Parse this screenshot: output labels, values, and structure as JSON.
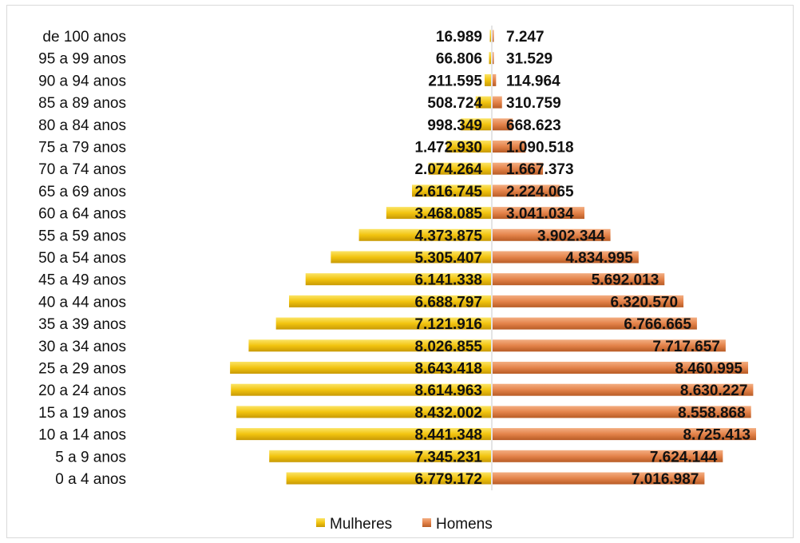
{
  "chart_data": {
    "type": "bar",
    "orientation": "horizontal-population-pyramid",
    "categories": [
      "de 100 anos",
      "95 a 99 anos",
      "90 a 94 anos",
      "85 a 89 anos",
      "80 a 84 anos",
      "75 a 79 anos",
      "70 a 74 anos",
      "65 a 69 anos",
      "60 a 64 anos",
      "55 a 59 anos",
      "50 a 54 anos",
      "45 a 49 anos",
      "40 a 44 anos",
      "35 a 39 anos",
      "30 a 34 anos",
      "25 a 29 anos",
      "20 a 24 anos",
      "15 a 19 anos",
      "10 a 14 anos",
      "5 a 9 anos",
      "0 a 4 anos"
    ],
    "series": [
      {
        "name": "Mulheres",
        "color": "#f2c40f",
        "values": [
          16989,
          66806,
          211595,
          508724,
          998349,
          1472930,
          2074264,
          2616745,
          3468085,
          4373875,
          5305407,
          6141338,
          6688797,
          7121916,
          8026855,
          8643418,
          8614963,
          8432002,
          8441348,
          7345231,
          6779172
        ],
        "labels": [
          "16.989",
          "66.806",
          "211.595",
          "508.724",
          "998.349",
          "1.472.930",
          "2.074.264",
          "2.616.745",
          "3.468.085",
          "4.373.875",
          "5.305.407",
          "6.141.338",
          "6.688.797",
          "7.121.916",
          "8.026.855",
          "8.643.418",
          "8.614.963",
          "8.432.002",
          "8.441.348",
          "7.345.231",
          "6.779.172"
        ]
      },
      {
        "name": "Homens",
        "color": "#e4834a",
        "values": [
          7247,
          31529,
          114964,
          310759,
          668623,
          1090518,
          1667373,
          2224065,
          3041034,
          3902344,
          4834995,
          5692013,
          6320570,
          6766665,
          7717657,
          8460995,
          8630227,
          8558868,
          8725413,
          7624144,
          7016987
        ],
        "labels": [
          "7.247",
          "31.529",
          "114.964",
          "310.759",
          "668.623",
          "1.090.518",
          "1.667.373",
          "2.224.065",
          "3.041.034",
          "3.902.344",
          "4.834.995",
          "5.692.013",
          "6.320.570",
          "6.766.665",
          "7.717.657",
          "8.460.995",
          "8.630.227",
          "8.558.868",
          "8.725.413",
          "7.624.144",
          "7.016.987"
        ]
      }
    ],
    "title": "",
    "xlabel": "",
    "ylabel": "",
    "grid": false,
    "legend_position": "bottom"
  }
}
